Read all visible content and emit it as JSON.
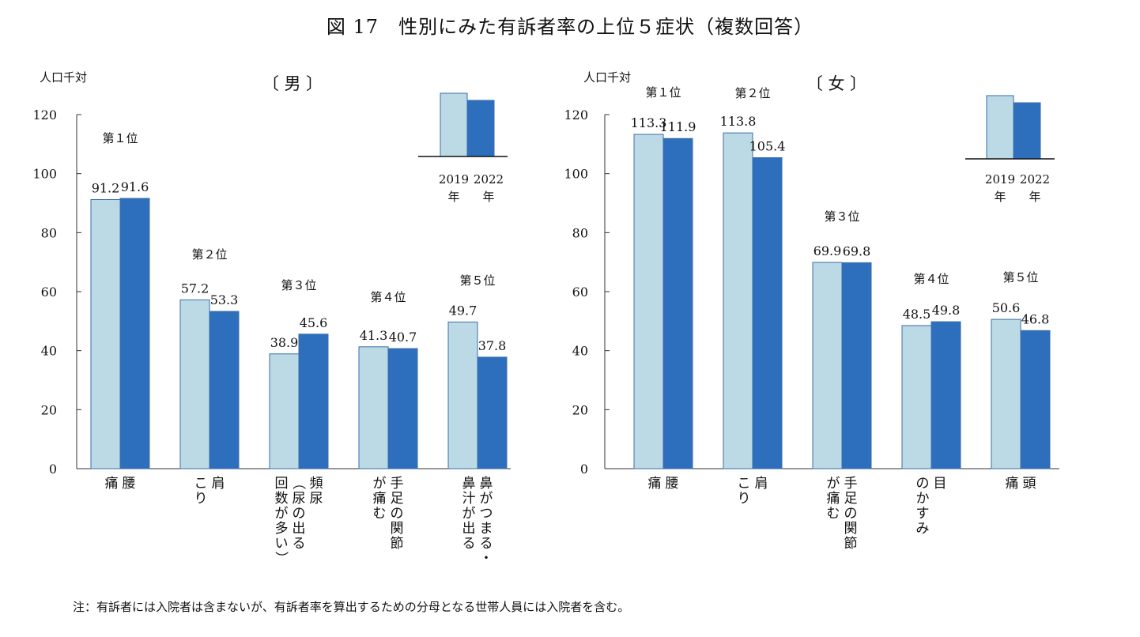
{
  "title": "図 17　性別にみた有訴者率の上位５症状（複数回答）",
  "note": "注：有訴者には入院者は含まないが、有訴者率を算出するための分母となる世帯人員には入院者を含む。",
  "colors": {
    "y2019": "#bcdae6",
    "y2022": "#2e6fbd",
    "edge": "#3a6ea8",
    "axis": "#333333"
  },
  "chart_data": [
    {
      "type": "bar",
      "panel_title": "〔 男 〕",
      "ylabel": "人口千対",
      "ylim": [
        0,
        120
      ],
      "yticks": [
        0,
        20,
        40,
        60,
        80,
        100,
        120
      ],
      "legend": [
        "2019|年",
        "2022|年"
      ],
      "categories": [
        "腰|痛",
        "肩|こり",
        "頻尿|（尿の出る|回数が多い）",
        "手足の関節|が痛む",
        "鼻がつまる・|鼻汁が出る"
      ],
      "ranks": [
        "第１位",
        "第２位",
        "第３位",
        "第４位",
        "第５位"
      ],
      "series": [
        {
          "name": "2019年",
          "values": [
            91.2,
            57.2,
            38.9,
            41.3,
            49.7
          ]
        },
        {
          "name": "2022年",
          "values": [
            91.6,
            53.3,
            45.6,
            40.7,
            37.8
          ]
        }
      ]
    },
    {
      "type": "bar",
      "panel_title": "〔 女 〕",
      "ylabel": "人口千対",
      "ylim": [
        0,
        120
      ],
      "yticks": [
        0,
        20,
        40,
        60,
        80,
        100,
        120
      ],
      "legend": [
        "2019|年",
        "2022|年"
      ],
      "categories": [
        "腰|痛",
        "肩|こり",
        "手足の関節|が痛む",
        "目|のかすみ",
        "頭|痛"
      ],
      "ranks": [
        "第１位",
        "第２位",
        "第３位",
        "第４位",
        "第５位"
      ],
      "series": [
        {
          "name": "2019年",
          "values": [
            113.3,
            113.8,
            69.9,
            48.5,
            50.6
          ]
        },
        {
          "name": "2022年",
          "values": [
            111.9,
            105.4,
            69.8,
            49.8,
            46.8
          ]
        }
      ]
    }
  ]
}
